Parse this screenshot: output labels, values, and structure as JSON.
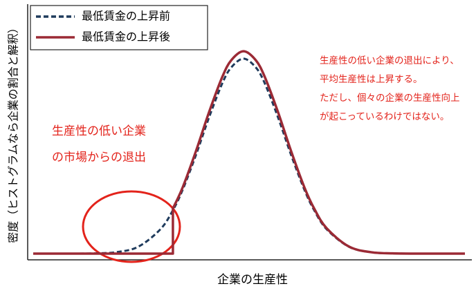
{
  "chart_data": {
    "type": "line",
    "y_label": "密度（ヒストグラムなら企業の割合と解釈）",
    "x_label": "企業の生産性",
    "annotations": [
      {
        "color": "#e3231b",
        "lines": [
          "生産性の低い企業",
          "の市場からの退出"
        ]
      },
      {
        "color": "#e3231b",
        "lines": [
          "生産性の低い企業の退出により、",
          "平均生産性は上昇する。",
          "ただし、個々の企業の生産性向上",
          "が起こっているわけではない。"
        ]
      }
    ],
    "xlim": [
      0,
      100
    ],
    "ylim": [
      0,
      100
    ],
    "legend": "upper left",
    "series": [
      {
        "name": "最低賃金の上昇前",
        "color": "#1f3b5c",
        "dash": true,
        "x": [
          1.25,
          5,
          10,
          15,
          20,
          25,
          30,
          32.8,
          35,
          38,
          41,
          44,
          46,
          48.75,
          51.5,
          53.5,
          56.5,
          59.5,
          62.5,
          64.7,
          67.5,
          72.5,
          77.5,
          82.5,
          87.5,
          92.5,
          98.75
        ],
        "values": [
          0,
          0,
          0,
          0.1,
          0.6,
          2.9,
          10.2,
          18.1,
          26.6,
          41.1,
          57.0,
          71.2,
          77.7,
          81.3,
          77.7,
          71.2,
          57.0,
          41.1,
          26.6,
          18.1,
          10.2,
          2.9,
          0.6,
          0.1,
          0,
          0,
          0
        ]
      },
      {
        "name": "最低賃金の上昇後",
        "color": "#9b2a35",
        "dash": false,
        "x": [
          1.25,
          32.8,
          32.8,
          35,
          38,
          41,
          44,
          46,
          48.75,
          51.5,
          53.5,
          56.5,
          59.5,
          62.5,
          64.7,
          67.5,
          72.5,
          77.5,
          82.5,
          87.5,
          92.5,
          98.75
        ],
        "values": [
          0,
          0,
          18.8,
          27.6,
          42.7,
          59.2,
          73.9,
          80.7,
          84.4,
          80.7,
          73.9,
          59.2,
          42.7,
          27.6,
          18.8,
          10.6,
          3.0,
          0.6,
          0.1,
          0,
          0,
          0
        ]
      }
    ]
  }
}
